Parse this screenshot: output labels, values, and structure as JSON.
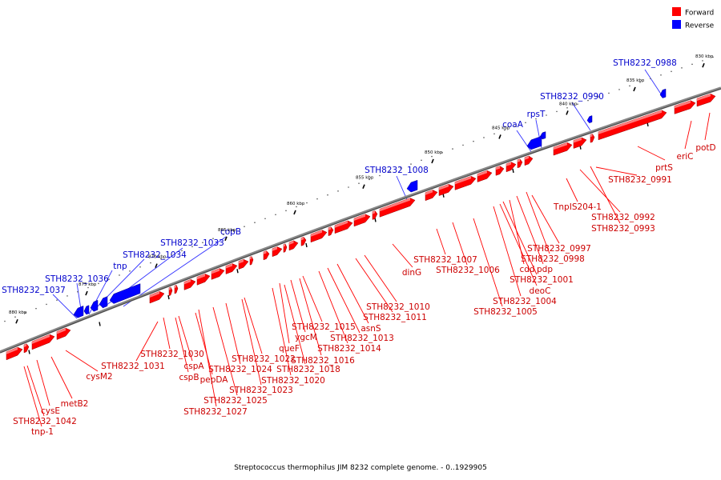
{
  "caption": "Streptococcus thermophilus JIM 8232 complete genome. - 0..1929905",
  "legend": [
    {
      "label": "Forward",
      "color": "#ff0000"
    },
    {
      "label": "Reverse",
      "color": "#0000ff"
    }
  ],
  "colors": {
    "forward": "#ff0000",
    "reverse": "#0000ff",
    "label_forward": "#cc0000",
    "label_reverse": "#0000cc",
    "backbone": "#888888"
  },
  "ticks": [
    "830 kbp",
    "835 kbp",
    "840 kbp",
    "845 kbp",
    "850 kbp",
    "855 kbp",
    "860 kbp",
    "865 kbp",
    "870 kbp",
    "875 kbp",
    "880 kbp"
  ],
  "genes_reverse": [
    "STH8232_0988",
    "STH8232_0990",
    "rpsT",
    "coaA",
    "STH8232_1008",
    "copB",
    "STH8232_1033",
    "STH8232_1034",
    "tnp",
    "STH8232_1036",
    "STH8232_1037"
  ],
  "genes_forward": [
    "potD",
    "eriC",
    "prtS",
    "STH8232_0991",
    "STH8232_0992",
    "STH8232_0993",
    "TnpIS204-1",
    "STH8232_0997",
    "STH8232_0998",
    "pdp",
    "cdd",
    "STH8232_1001",
    "deoC",
    "STH8232_1004",
    "STH8232_1005",
    "STH8232_1006",
    "STH8232_1007",
    "dinG",
    "STH8232_1010",
    "STH8232_1011",
    "asnS",
    "STH8232_1013",
    "STH8232_1014",
    "STH8232_1015",
    "STH8232_1016",
    "ygcM",
    "queF",
    "STH8232_1018",
    "STH8232_1020",
    "STH8232_1022",
    "STH8232_1023",
    "STH8232_1024",
    "STH8232_1025",
    "STH8232_1027",
    "pepDA",
    "cspA",
    "cspB",
    "STH8232_1030",
    "STH8232_1031",
    "cysM2",
    "metB2",
    "cysE",
    "STH8232_1042",
    "tnp-1"
  ]
}
